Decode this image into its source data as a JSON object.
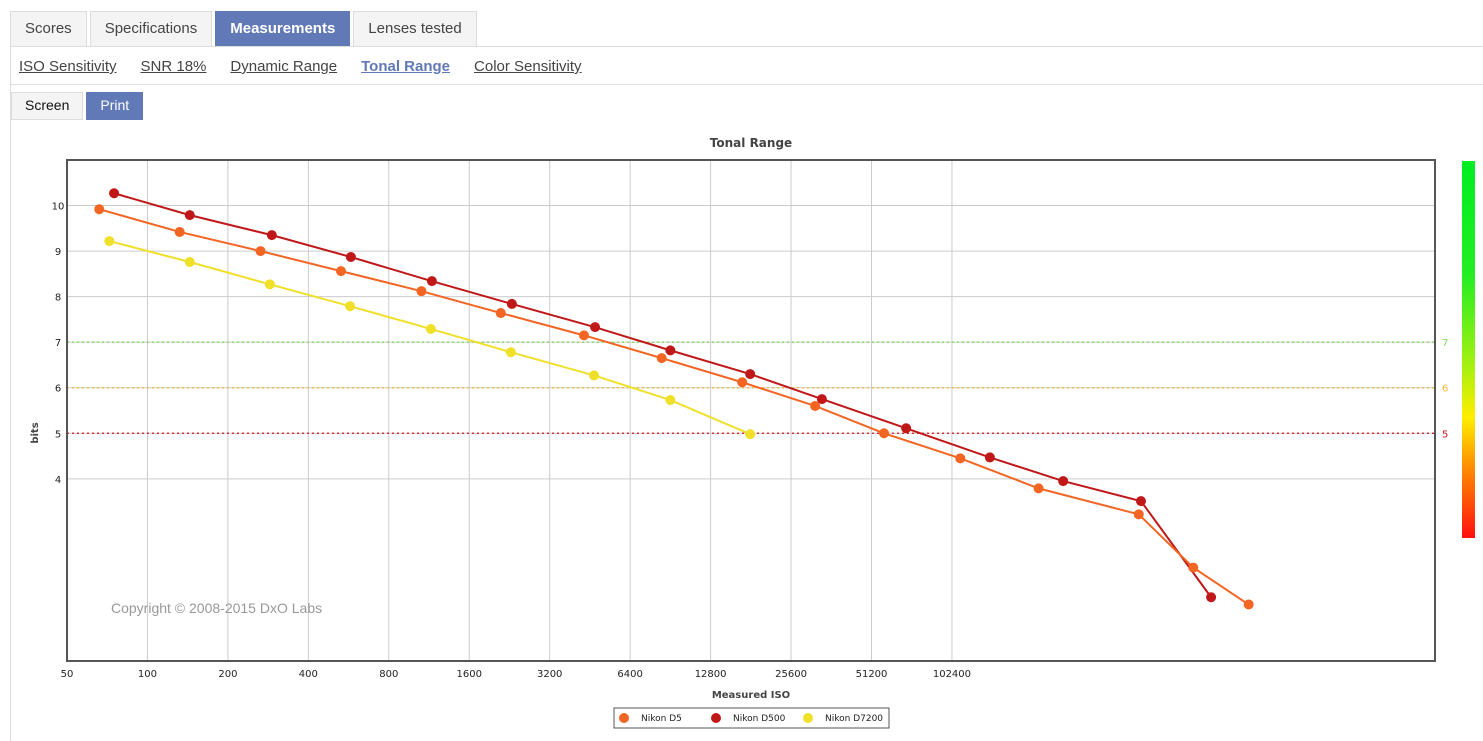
{
  "tabs": [
    {
      "label": "Scores"
    },
    {
      "label": "Specifications"
    },
    {
      "label": "Measurements",
      "active": true
    },
    {
      "label": "Lenses tested"
    }
  ],
  "subnav": [
    {
      "label": "ISO Sensitivity"
    },
    {
      "label": "SNR 18%"
    },
    {
      "label": "Dynamic Range"
    },
    {
      "label": "Tonal Range",
      "active": true
    },
    {
      "label": "Color Sensitivity"
    }
  ],
  "modes": [
    {
      "label": "Screen"
    },
    {
      "label": "Print",
      "active": true
    }
  ],
  "copyright": "Copyright © 2008-2015 DxO Labs",
  "chart_data": {
    "type": "line",
    "title": "Tonal Range",
    "xlabel": "Measured ISO",
    "ylabel": "bits",
    "xscale": "log2",
    "xlim": [
      50,
      3276800
    ],
    "ylim": [
      0,
      11
    ],
    "xticks": [
      50,
      100,
      200,
      400,
      800,
      1600,
      3200,
      6400,
      12800,
      25600,
      51200,
      102400
    ],
    "yticks": [
      4,
      5,
      6,
      7,
      8,
      9,
      10
    ],
    "thresholds": [
      {
        "value": 7,
        "label": "7",
        "color": "#7ddc5a"
      },
      {
        "value": 6,
        "label": "6",
        "color": "#f0b92d"
      },
      {
        "value": 5,
        "label": "5",
        "color": "#d0101a"
      }
    ],
    "legend_position": "bottom-center",
    "series": [
      {
        "name": "Nikon D5",
        "color": "#f26522",
        "x": [
          66,
          132,
          265,
          530,
          1060,
          2100,
          4300,
          8400,
          16800,
          31500,
          57000,
          110000,
          216000,
          512000,
          819000,
          1320000
        ],
        "y": [
          9.92,
          9.42,
          9.0,
          8.56,
          8.12,
          7.64,
          7.15,
          6.65,
          6.12,
          5.6,
          5.0,
          4.45,
          3.79,
          3.22,
          2.05,
          1.24
        ]
      },
      {
        "name": "Nikon D500",
        "color": "#c01818",
        "x": [
          75,
          144,
          292,
          577,
          1160,
          2310,
          4730,
          9050,
          18000,
          33400,
          69000,
          142000,
          267000,
          522000,
          955000
        ],
        "y": [
          10.27,
          9.79,
          9.35,
          8.87,
          8.34,
          7.84,
          7.33,
          6.82,
          6.3,
          5.75,
          5.11,
          4.47,
          3.95,
          3.51,
          1.4
        ]
      },
      {
        "name": "Nikon D7200",
        "color": "#f0e02a",
        "x": [
          72,
          144,
          287,
          573,
          1150,
          2290,
          4690,
          9050,
          18000
        ],
        "y": [
          9.22,
          8.76,
          8.27,
          7.79,
          7.29,
          6.78,
          6.27,
          5.73,
          4.98
        ]
      }
    ]
  }
}
